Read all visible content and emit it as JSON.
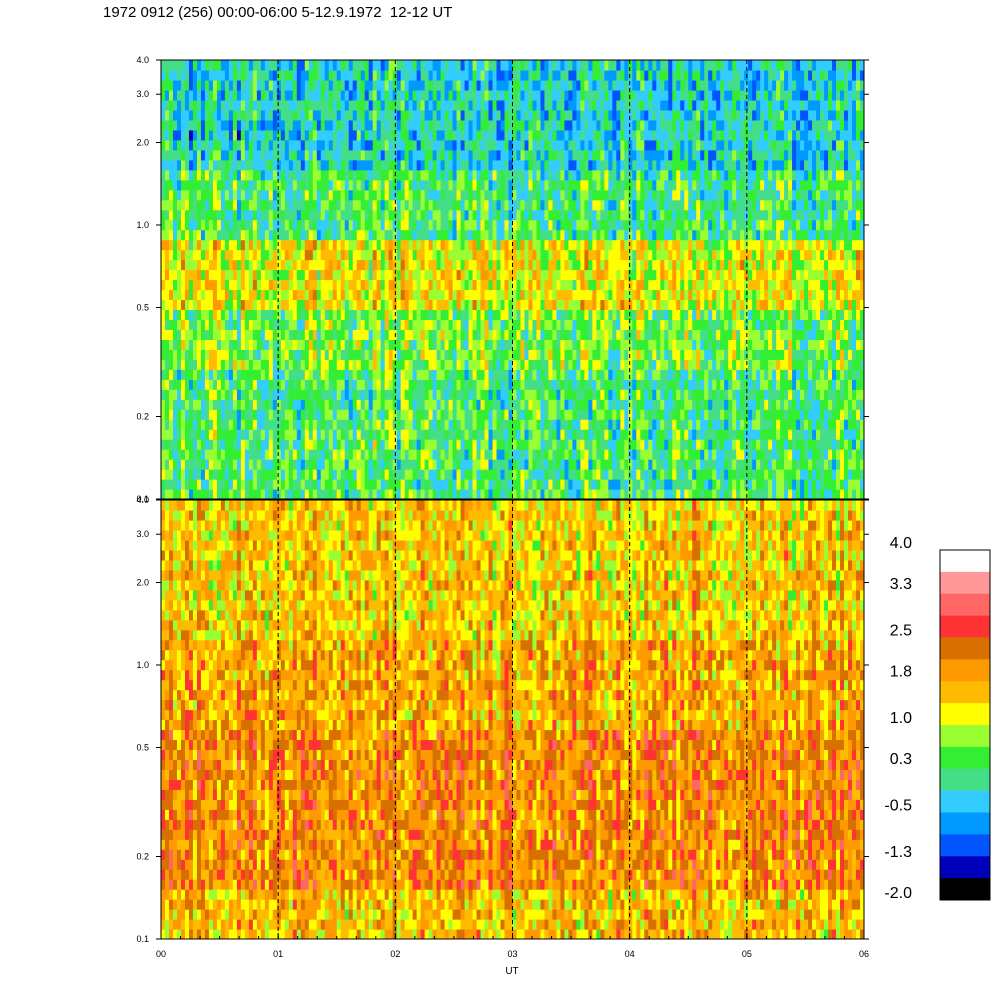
{
  "header": {
    "title": "1972 0912 (256) 00:00-06:00 5-12.9.1972  12-12 UT"
  },
  "chart_data": [
    {
      "type": "heatmap",
      "panel": "top",
      "scale_y": "log",
      "ylim": [
        0.1,
        4.0
      ],
      "xlim": [
        0,
        6
      ],
      "y_ticks": [
        "0.1",
        "0.2",
        "0.5",
        "1.0",
        "2.0",
        "3.0",
        "4.0"
      ],
      "y_tick_values": [
        0.1,
        0.2,
        0.5,
        1.0,
        2.0,
        3.0,
        4.0
      ],
      "vertical_dashed_lines_at": [
        1,
        2,
        3,
        4,
        5
      ],
      "dominant_levels_by_frequency": [
        {
          "band": [
            0.1,
            0.3
          ],
          "level": 0.3
        },
        {
          "band": [
            0.3,
            0.5
          ],
          "level": 0.6
        },
        {
          "band": [
            0.5,
            0.9
          ],
          "level": 1.2
        },
        {
          "band": [
            0.9,
            1.6
          ],
          "level": 0.3
        },
        {
          "band": [
            1.6,
            4.0
          ],
          "level": -0.2
        }
      ]
    },
    {
      "type": "heatmap",
      "panel": "bottom",
      "scale_y": "log",
      "ylim": [
        0.1,
        4.0
      ],
      "xlim": [
        0,
        6
      ],
      "y_ticks": [
        "0.1",
        "0.2",
        "0.5",
        "1.0",
        "2.0",
        "3.0",
        "4.0"
      ],
      "y_tick_values": [
        0.1,
        0.2,
        0.5,
        1.0,
        2.0,
        3.0,
        4.0
      ],
      "x_ticks": [
        "00",
        "01",
        "02",
        "03",
        "04",
        "05",
        "06"
      ],
      "x_tick_values": [
        0,
        1,
        2,
        3,
        4,
        5,
        6
      ],
      "xlabel": "UT",
      "vertical_dashed_lines_at": [
        1,
        2,
        3,
        4,
        5
      ],
      "dominant_levels_by_frequency": [
        {
          "band": [
            0.1,
            0.15
          ],
          "level": 1.6
        },
        {
          "band": [
            0.15,
            0.6
          ],
          "level": 2.1
        },
        {
          "band": [
            0.6,
            1.2
          ],
          "level": 1.8
        },
        {
          "band": [
            1.2,
            4.0
          ],
          "level": 1.5
        }
      ]
    }
  ],
  "colorbar": {
    "labels": [
      "4.0",
      "3.3",
      "2.5",
      "1.8",
      "1.0",
      "0.3",
      "-0.5",
      "-1.3",
      "-2.0"
    ],
    "label_values": [
      4.0,
      3.3,
      2.5,
      1.8,
      1.0,
      0.3,
      -0.5,
      -1.3,
      -2.0
    ],
    "colors_top_to_bottom": [
      "#ffffff",
      "#ff9999",
      "#ff6666",
      "#ff3333",
      "#d87000",
      "#ff9900",
      "#ffbb00",
      "#ffff00",
      "#99ff33",
      "#33ee33",
      "#44dd88",
      "#33ccff",
      "#0099ff",
      "#0055ff",
      "#0000bb",
      "#000000"
    ]
  }
}
